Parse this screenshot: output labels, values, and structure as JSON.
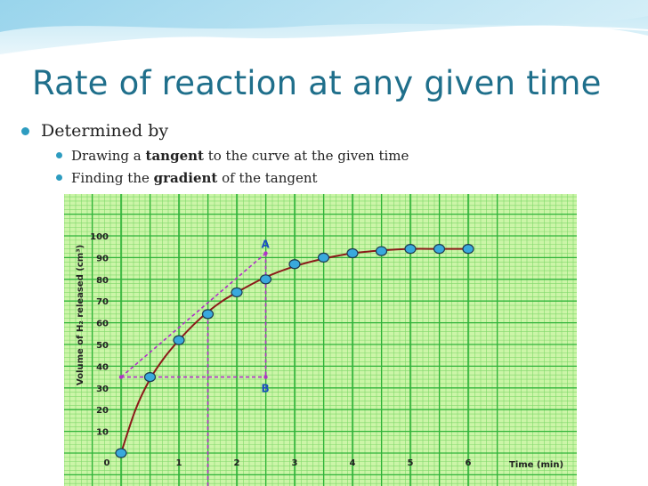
{
  "slide": {
    "title": "Rate of reaction at any given time",
    "bullet_main": "Determined by",
    "sub_bullets": [
      {
        "before": "Drawing a ",
        "bold": "tangent",
        "after": " to the curve at the given time"
      },
      {
        "before": "Finding the ",
        "bold": "gradient",
        "after": " of the tangent"
      }
    ]
  },
  "colors": {
    "title": "#1f6f8b",
    "bullet": "#2d9cc0",
    "grid_bg": "#ccf5a8",
    "grid_major": "#2fb33a",
    "grid_minor": "#7fd86a",
    "curve": "#8b1a1a",
    "tangent": "#b030c8",
    "point_fill": "#39a9dd"
  },
  "chart_data": {
    "type": "scatter",
    "title": "",
    "xlabel": "Time (min)",
    "ylabel": "Volume of H₂ released (cm³)",
    "xlim": [
      0,
      6
    ],
    "ylim": [
      0,
      100
    ],
    "x_ticks": [
      "0",
      "1",
      "2",
      "3",
      "4",
      "5",
      "6"
    ],
    "y_ticks": [
      "10",
      "20",
      "30",
      "40",
      "50",
      "60",
      "70",
      "80",
      "90",
      "100"
    ],
    "points": [
      {
        "x": 0,
        "y": 0
      },
      {
        "x": 0.5,
        "y": 35
      },
      {
        "x": 1,
        "y": 52
      },
      {
        "x": 1.5,
        "y": 64
      },
      {
        "x": 2,
        "y": 74
      },
      {
        "x": 2.5,
        "y": 80
      },
      {
        "x": 3,
        "y": 87
      },
      {
        "x": 3.5,
        "y": 90
      },
      {
        "x": 4,
        "y": 92
      },
      {
        "x": 4.5,
        "y": 93
      },
      {
        "x": 5,
        "y": 94
      },
      {
        "x": 5.5,
        "y": 94
      },
      {
        "x": 6,
        "y": 94
      }
    ],
    "curve": [
      {
        "x": 0,
        "y": 0
      },
      {
        "x": 0.25,
        "y": 20
      },
      {
        "x": 0.5,
        "y": 34
      },
      {
        "x": 0.75,
        "y": 44
      },
      {
        "x": 1,
        "y": 52
      },
      {
        "x": 1.25,
        "y": 59
      },
      {
        "x": 1.5,
        "y": 65
      },
      {
        "x": 1.75,
        "y": 70
      },
      {
        "x": 2,
        "y": 74
      },
      {
        "x": 2.5,
        "y": 81
      },
      {
        "x": 3,
        "y": 86
      },
      {
        "x": 3.5,
        "y": 89.5
      },
      {
        "x": 4,
        "y": 92
      },
      {
        "x": 4.5,
        "y": 93.3
      },
      {
        "x": 5,
        "y": 94
      },
      {
        "x": 5.5,
        "y": 94
      },
      {
        "x": 6,
        "y": 94
      }
    ],
    "tangent": {
      "x1": 0,
      "y1": 35,
      "x2": 2.5,
      "y2": 92
    },
    "point_A": {
      "label": "A",
      "x": 2.5,
      "y": 92
    },
    "point_B": {
      "label": "B",
      "x": 2.5,
      "y": 35
    },
    "drop_line_x": 1.5,
    "grid": true
  }
}
